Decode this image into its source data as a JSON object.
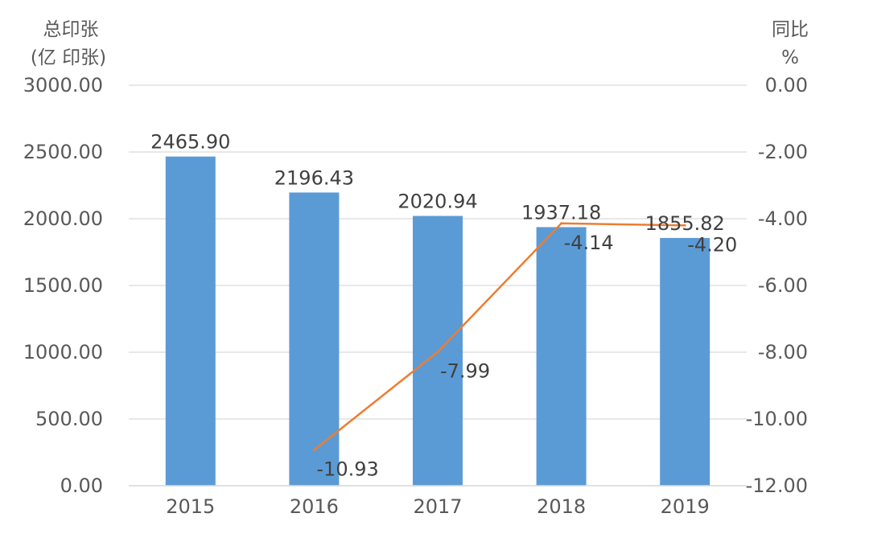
{
  "chart_data": {
    "type": "bar",
    "categories": [
      "2015",
      "2016",
      "2017",
      "2018",
      "2019"
    ],
    "series": [
      {
        "type": "bar",
        "axis": "left",
        "values": [
          2465.9,
          2196.43,
          2020.94,
          1937.18,
          1855.82
        ],
        "labels": [
          "2465.90",
          "2196.43",
          "2020.94",
          "1937.18",
          "1855.82"
        ],
        "color": "#5b9bd5"
      },
      {
        "type": "line",
        "axis": "right",
        "x": [
          "2016",
          "2017",
          "2018",
          "2019"
        ],
        "values": [
          -10.93,
          -7.99,
          -4.14,
          -4.2
        ],
        "labels": [
          "-10.93",
          "-7.99",
          "-4.14",
          "-4.20"
        ],
        "color": "#ed7d31"
      }
    ],
    "ylabel_left": [
      "总印张",
      "(亿 印张)"
    ],
    "ylabel_right": [
      "同比",
      "%"
    ],
    "ylim_left": [
      0,
      3000
    ],
    "ylim_right": [
      -12,
      0
    ],
    "yticks_left": [
      "0.00",
      "500.00",
      "1000.00",
      "1500.00",
      "2000.00",
      "2500.00",
      "3000.00"
    ],
    "yticks_right": [
      "-12.00",
      "-10.00",
      "-8.00",
      "-6.00",
      "-4.00",
      "-2.00",
      "0.00"
    ],
    "grid": true,
    "legend": false
  }
}
